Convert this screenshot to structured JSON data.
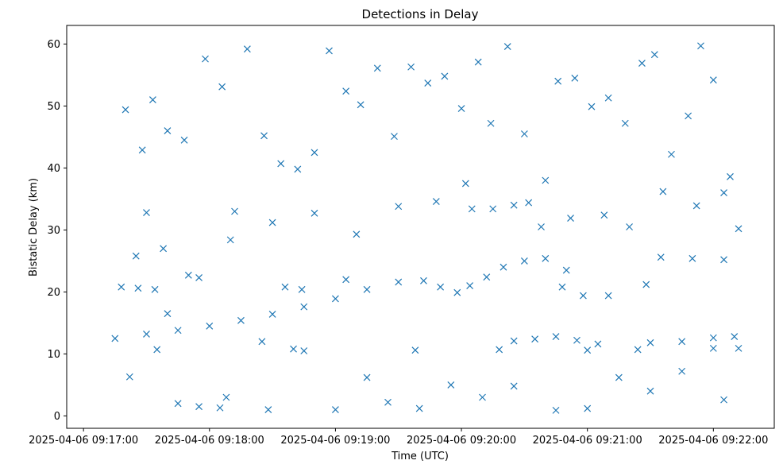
{
  "chart_data": {
    "type": "scatter",
    "title": "Detections in Delay",
    "xlabel": "Time (UTC)",
    "ylabel": "Bistatic Delay (km)",
    "marker": "x",
    "color": "#1f77b4",
    "grid": false,
    "x_type": "datetime",
    "xlim": [
      "2025-04-06 09:16:52",
      "2025-04-06 09:22:29"
    ],
    "ylim": [
      -2,
      63
    ],
    "x_ticks": [
      "2025-04-06 09:17:00",
      "2025-04-06 09:18:00",
      "2025-04-06 09:19:00",
      "2025-04-06 09:20:00",
      "2025-04-06 09:21:00",
      "2025-04-06 09:22:00"
    ],
    "y_ticks": [
      0,
      10,
      20,
      30,
      40,
      50,
      60
    ],
    "series": [
      {
        "points": [
          [
            "2025-04-06 09:17:15",
            12.5
          ],
          [
            "2025-04-06 09:17:30",
            13.2
          ],
          [
            "2025-04-06 09:17:45",
            13.8
          ],
          [
            "2025-04-06 09:18:00",
            14.5
          ],
          [
            "2025-04-06 09:18:15",
            15.4
          ],
          [
            "2025-04-06 09:18:30",
            16.4
          ],
          [
            "2025-04-06 09:18:45",
            17.6
          ],
          [
            "2025-04-06 09:19:00",
            18.9
          ],
          [
            "2025-04-06 09:19:15",
            20.4
          ],
          [
            "2025-04-06 09:19:30",
            21.6
          ],
          [
            "2025-04-06 09:17:18",
            20.8
          ],
          [
            "2025-04-06 09:17:26",
            20.6
          ],
          [
            "2025-04-06 09:17:34",
            20.4
          ],
          [
            "2025-04-06 09:18:36",
            20.8
          ],
          [
            "2025-04-06 09:18:44",
            20.4
          ],
          [
            "2025-04-06 09:19:42",
            21.8
          ],
          [
            "2025-04-06 09:19:50",
            20.8
          ],
          [
            "2025-04-06 09:19:58",
            19.9
          ],
          [
            "2025-04-06 09:20:04",
            21.0
          ],
          [
            "2025-04-06 09:20:12",
            22.4
          ],
          [
            "2025-04-06 09:20:20",
            24.0
          ],
          [
            "2025-04-06 09:20:30",
            25.0
          ],
          [
            "2025-04-06 09:20:40",
            25.4
          ],
          [
            "2025-04-06 09:20:25",
            12.1
          ],
          [
            "2025-04-06 09:20:35",
            12.4
          ],
          [
            "2025-04-06 09:20:45",
            12.8
          ],
          [
            "2025-04-06 09:20:55",
            12.2
          ],
          [
            "2025-04-06 09:21:05",
            11.6
          ],
          [
            "2025-04-06 09:20:48",
            20.8
          ],
          [
            "2025-04-06 09:20:58",
            19.4
          ],
          [
            "2025-04-06 09:21:10",
            19.4
          ],
          [
            "2025-04-06 09:20:05",
            33.4
          ],
          [
            "2025-04-06 09:20:15",
            33.4
          ],
          [
            "2025-04-06 09:20:25",
            34.0
          ],
          [
            "2025-04-06 09:20:32",
            34.4
          ],
          [
            "2025-04-06 09:21:30",
            11.8
          ],
          [
            "2025-04-06 09:21:45",
            12.0
          ],
          [
            "2025-04-06 09:22:00",
            12.6
          ],
          [
            "2025-04-06 09:22:10",
            12.8
          ],
          [
            "2025-04-06 09:21:35",
            25.6
          ],
          [
            "2025-04-06 09:21:50",
            25.4
          ],
          [
            "2025-04-06 09:22:05",
            25.2
          ],
          [
            "2025-04-06 09:17:25",
            25.8
          ],
          [
            "2025-04-06 09:17:38",
            27.0
          ],
          [
            "2025-04-06 09:17:55",
            1.5
          ],
          [
            "2025-04-06 09:18:05",
            1.3
          ],
          [
            "2025-04-06 09:18:25",
            12.0
          ],
          [
            "2025-04-06 09:17:20",
            49.4
          ],
          [
            "2025-04-06 09:17:28",
            42.9
          ],
          [
            "2025-04-06 09:17:33",
            51.0
          ],
          [
            "2025-04-06 09:17:40",
            46.0
          ],
          [
            "2025-04-06 09:17:48",
            44.5
          ],
          [
            "2025-04-06 09:17:58",
            57.6
          ],
          [
            "2025-04-06 09:18:06",
            53.1
          ],
          [
            "2025-04-06 09:18:12",
            33.0
          ],
          [
            "2025-04-06 09:18:18",
            59.2
          ],
          [
            "2025-04-06 09:18:26",
            45.2
          ],
          [
            "2025-04-06 09:18:34",
            40.7
          ],
          [
            "2025-04-06 09:18:42",
            39.8
          ],
          [
            "2025-04-06 09:18:50",
            42.5
          ],
          [
            "2025-04-06 09:18:57",
            58.9
          ],
          [
            "2025-04-06 09:19:05",
            52.4
          ],
          [
            "2025-04-06 09:19:12",
            50.2
          ],
          [
            "2025-04-06 09:19:20",
            56.1
          ],
          [
            "2025-04-06 09:19:28",
            45.1
          ],
          [
            "2025-04-06 09:19:36",
            56.3
          ],
          [
            "2025-04-06 09:19:44",
            53.7
          ],
          [
            "2025-04-06 09:19:52",
            54.8
          ],
          [
            "2025-04-06 09:20:00",
            49.6
          ],
          [
            "2025-04-06 09:20:08",
            57.1
          ],
          [
            "2025-04-06 09:20:14",
            47.2
          ],
          [
            "2025-04-06 09:20:22",
            59.6
          ],
          [
            "2025-04-06 09:20:30",
            45.5
          ],
          [
            "2025-04-06 09:20:38",
            30.5
          ],
          [
            "2025-04-06 09:20:46",
            54.0
          ],
          [
            "2025-04-06 09:20:54",
            54.5
          ],
          [
            "2025-04-06 09:21:02",
            49.9
          ],
          [
            "2025-04-06 09:21:10",
            51.3
          ],
          [
            "2025-04-06 09:21:18",
            47.2
          ],
          [
            "2025-04-06 09:21:26",
            56.9
          ],
          [
            "2025-04-06 09:21:32",
            58.3
          ],
          [
            "2025-04-06 09:21:40",
            42.2
          ],
          [
            "2025-04-06 09:21:48",
            48.4
          ],
          [
            "2025-04-06 09:21:54",
            59.7
          ],
          [
            "2025-04-06 09:22:00",
            54.2
          ],
          [
            "2025-04-06 09:22:08",
            38.6
          ],
          [
            "2025-04-06 09:22:12",
            30.2
          ],
          [
            "2025-04-06 09:17:22",
            6.3
          ],
          [
            "2025-04-06 09:17:35",
            10.7
          ],
          [
            "2025-04-06 09:17:45",
            2.0
          ],
          [
            "2025-04-06 09:18:08",
            3.0
          ],
          [
            "2025-04-06 09:18:28",
            1.0
          ],
          [
            "2025-04-06 09:18:45",
            10.5
          ],
          [
            "2025-04-06 09:19:00",
            1.0
          ],
          [
            "2025-04-06 09:19:15",
            6.2
          ],
          [
            "2025-04-06 09:19:25",
            2.2
          ],
          [
            "2025-04-06 09:19:40",
            1.2
          ],
          [
            "2025-04-06 09:19:55",
            5.0
          ],
          [
            "2025-04-06 09:20:10",
            3.0
          ],
          [
            "2025-04-06 09:20:25",
            4.8
          ],
          [
            "2025-04-06 09:20:45",
            0.9
          ],
          [
            "2025-04-06 09:21:00",
            1.2
          ],
          [
            "2025-04-06 09:21:15",
            6.2
          ],
          [
            "2025-04-06 09:21:30",
            4.0
          ],
          [
            "2025-04-06 09:21:45",
            7.2
          ],
          [
            "2025-04-06 09:22:05",
            2.6
          ],
          [
            "2025-04-06 09:22:12",
            10.9
          ],
          [
            "2025-04-06 09:17:30",
            32.8
          ],
          [
            "2025-04-06 09:17:50",
            22.7
          ],
          [
            "2025-04-06 09:18:10",
            28.4
          ],
          [
            "2025-04-06 09:18:30",
            31.2
          ],
          [
            "2025-04-06 09:18:50",
            32.7
          ],
          [
            "2025-04-06 09:19:10",
            29.3
          ],
          [
            "2025-04-06 09:19:30",
            33.8
          ],
          [
            "2025-04-06 09:19:48",
            34.6
          ],
          [
            "2025-04-06 09:20:02",
            37.5
          ],
          [
            "2025-04-06 09:20:40",
            38.0
          ],
          [
            "2025-04-06 09:20:52",
            31.9
          ],
          [
            "2025-04-06 09:21:08",
            32.4
          ],
          [
            "2025-04-06 09:21:20",
            30.5
          ],
          [
            "2025-04-06 09:21:36",
            36.2
          ],
          [
            "2025-04-06 09:21:52",
            33.9
          ],
          [
            "2025-04-06 09:22:05",
            36.0
          ],
          [
            "2025-04-06 09:17:40",
            16.5
          ],
          [
            "2025-04-06 09:18:40",
            10.8
          ],
          [
            "2025-04-06 09:19:38",
            10.6
          ],
          [
            "2025-04-06 09:20:18",
            10.7
          ],
          [
            "2025-04-06 09:21:00",
            10.6
          ],
          [
            "2025-04-06 09:21:24",
            10.7
          ],
          [
            "2025-04-06 09:22:00",
            10.9
          ],
          [
            "2025-04-06 09:17:55",
            22.3
          ],
          [
            "2025-04-06 09:19:05",
            22.0
          ],
          [
            "2025-04-06 09:20:50",
            23.5
          ],
          [
            "2025-04-06 09:21:28",
            21.2
          ]
        ]
      }
    ]
  }
}
